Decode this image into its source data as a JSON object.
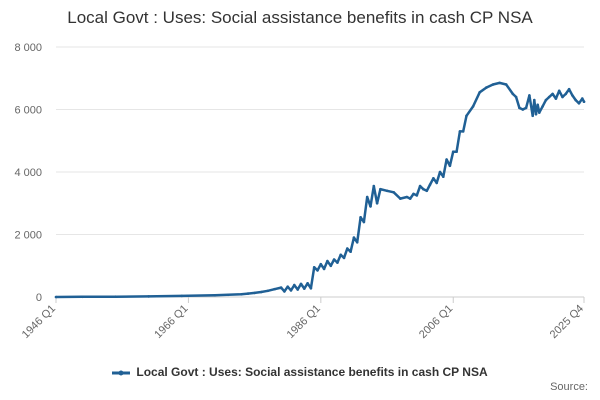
{
  "chart_data": {
    "type": "line",
    "title": "Local Govt : Uses: Social assistance benefits in cash CP NSA",
    "xlabel": "",
    "ylabel": "",
    "ylim": [
      0,
      8000
    ],
    "y_ticks": [
      0,
      2000,
      4000,
      6000,
      8000
    ],
    "y_tick_labels": [
      "0",
      "2 000",
      "4 000",
      "6 000",
      "8 000"
    ],
    "x_range": [
      1946.0,
      2025.75
    ],
    "x_ticks": [
      1946.0,
      1966.0,
      1986.0,
      2006.0,
      2025.75
    ],
    "x_tick_labels": [
      "1946 Q1",
      "1966 Q1",
      "1986 Q1",
      "2006 Q1",
      "2025 Q4"
    ],
    "grid": true,
    "legend_position": "bottom",
    "color": "#206095",
    "series": [
      {
        "name": "Local Govt : Uses: Social assistance benefits in cash CP NSA",
        "x": [
          1946,
          1950,
          1955,
          1960,
          1965,
          1970,
          1972,
          1974,
          1975,
          1976,
          1977,
          1978,
          1979,
          1980,
          1980.5,
          1981,
          1981.5,
          1982,
          1982.5,
          1983,
          1983.5,
          1984,
          1984.5,
          1985,
          1985.5,
          1986,
          1986.5,
          1987,
          1987.5,
          1988,
          1988.5,
          1989,
          1989.5,
          1990,
          1990.5,
          1991,
          1991.5,
          1992,
          1992.5,
          1993,
          1993.5,
          1994,
          1994.5,
          1995,
          1996,
          1997,
          1998,
          1999,
          1999.5,
          2000,
          2000.5,
          2001,
          2001.5,
          2002,
          2002.5,
          2003,
          2003.5,
          2004,
          2004.5,
          2005,
          2005.5,
          2006,
          2006.5,
          2007,
          2007.5,
          2008,
          2009,
          2010,
          2011,
          2012,
          2013,
          2014,
          2015,
          2015.5,
          2016,
          2016.5,
          2017,
          2017.5,
          2018,
          2018.25,
          2018.5,
          2018.75,
          2019,
          2019.5,
          2020,
          2020.5,
          2021,
          2021.5,
          2022,
          2022.5,
          2023,
          2023.5,
          2024,
          2024.5,
          2025,
          2025.5,
          2025.75
        ],
        "values": [
          0,
          5,
          10,
          20,
          35,
          55,
          70,
          85,
          110,
          130,
          160,
          200,
          250,
          300,
          180,
          330,
          210,
          380,
          240,
          420,
          270,
          440,
          280,
          950,
          850,
          1050,
          900,
          1150,
          1000,
          1200,
          1100,
          1350,
          1250,
          1550,
          1450,
          1900,
          1750,
          2550,
          2400,
          3200,
          2900,
          3550,
          3000,
          3450,
          3400,
          3350,
          3150,
          3200,
          3150,
          3300,
          3250,
          3550,
          3450,
          3400,
          3600,
          3800,
          3650,
          4000,
          3850,
          4400,
          4200,
          4650,
          4650,
          5300,
          5300,
          5800,
          6100,
          6550,
          6700,
          6800,
          6850,
          6800,
          6500,
          6400,
          6050,
          6000,
          6050,
          6450,
          5800,
          6300,
          5850,
          6150,
          5900,
          6100,
          6300,
          6400,
          6500,
          6350,
          6600,
          6400,
          6500,
          6650,
          6450,
          6300,
          6200,
          6350,
          6250
        ]
      }
    ]
  },
  "legend": {
    "label": "Local Govt : Uses: Social assistance benefits in cash CP NSA"
  },
  "footer": {
    "source_label": "Source:"
  }
}
